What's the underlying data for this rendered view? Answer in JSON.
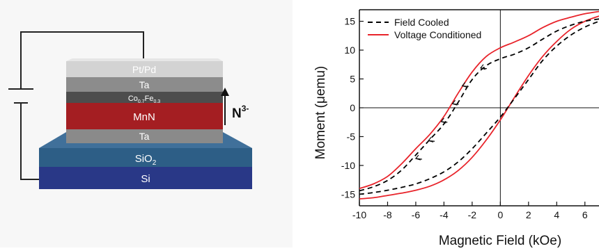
{
  "device": {
    "layers": {
      "cap": "Pt/Pd",
      "ta_top": "Ta",
      "cofe": {
        "base1": "Co",
        "sub1": "0.7",
        "base2": "Fe",
        "sub2": "0.3"
      },
      "mnn": "MnN",
      "ta_bottom": "Ta",
      "sio2": {
        "base": "SiO",
        "sub": "2"
      },
      "si": "Si"
    },
    "ion_label": {
      "base": "N",
      "sup": "3-"
    }
  },
  "colors": {
    "field_cooled": "#000000",
    "voltage_conditioned": "#e8232a",
    "cap": "#d3d3d3",
    "ta": "#8c8c8c",
    "cofe": "#4d4d4d",
    "mnn": "#a41e22",
    "sio2": "#2d5e86",
    "si": "#293887"
  },
  "chart_data": {
    "type": "line",
    "xlabel": "Magnetic Field (kOe)",
    "ylabel": "Moment (μemu)",
    "xlim": [
      -10,
      7
    ],
    "ylim": [
      -17,
      17
    ],
    "xticks": [
      -10,
      -8,
      -6,
      -4,
      -2,
      0,
      2,
      4,
      6
    ],
    "yticks": [
      -15,
      -10,
      -5,
      0,
      5,
      10,
      15
    ],
    "legend_position": "top-left",
    "series": [
      {
        "name": "Field Cooled",
        "style": "dashed",
        "branches": [
          {
            "x": [
              -10,
              -9,
              -8,
              -7,
              -6,
              -5,
              -4,
              -3,
              -2,
              -1,
              0,
              1,
              2,
              3,
              4,
              5,
              6,
              7
            ],
            "y": [
              -15.0,
              -14.7,
              -14.3,
              -13.8,
              -13.2,
              -12.3,
              -11.1,
              -9.4,
              -7.1,
              -4.4,
              -1.6,
              1.6,
              4.9,
              8.2,
              10.7,
              12.6,
              14.0,
              15.0
            ]
          },
          {
            "x": [
              7,
              6,
              5,
              4,
              3,
              2,
              1,
              0,
              -1,
              -2,
              -3,
              -4,
              -5,
              -6,
              -7,
              -8,
              -9,
              -10
            ],
            "y": [
              15.4,
              15.0,
              14.3,
              13.3,
              11.9,
              10.4,
              9.3,
              8.5,
              7.3,
              4.9,
              0.9,
              -2.8,
              -5.5,
              -8.2,
              -10.8,
              -12.6,
              -13.7,
              -14.4
            ]
          }
        ]
      },
      {
        "name": "Voltage Conditioned",
        "style": "solid",
        "branches": [
          {
            "x": [
              -10,
              -9,
              -8,
              -7,
              -6,
              -5,
              -4,
              -3,
              -2,
              -1,
              0,
              1,
              2,
              3,
              4,
              5,
              6,
              7
            ],
            "y": [
              -15.8,
              -15.6,
              -15.2,
              -14.8,
              -14.3,
              -13.6,
              -12.5,
              -10.9,
              -8.6,
              -5.6,
              -2.1,
              1.8,
              5.6,
              8.9,
              11.5,
              13.6,
              15.0,
              15.9
            ]
          },
          {
            "x": [
              7,
              6,
              5,
              4,
              3,
              2,
              1,
              0,
              -1,
              -2,
              -3,
              -4,
              -5,
              -6,
              -7,
              -8,
              -9,
              -10
            ],
            "y": [
              16.7,
              16.3,
              15.7,
              15.0,
              13.9,
              12.5,
              11.4,
              10.4,
              8.9,
              6.2,
              2.5,
              -1.5,
              -4.6,
              -7.1,
              -9.7,
              -11.9,
              -13.2,
              -14.0
            ]
          }
        ]
      }
    ],
    "arrows": [
      {
        "x": -1.4,
        "y": 6.9
      },
      {
        "x": -2.7,
        "y": 3.8
      },
      {
        "x": -3.4,
        "y": 0.7
      },
      {
        "x": -4.2,
        "y": -2.4
      },
      {
        "x": -5.1,
        "y": -5.7
      },
      {
        "x": -6.0,
        "y": -8.8
      }
    ]
  }
}
